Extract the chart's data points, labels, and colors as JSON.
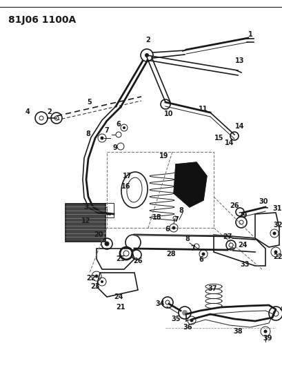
{
  "title": "81J06 1100A",
  "bg_color": "#ffffff",
  "line_color": "#1a1a1a",
  "title_fontsize": 10,
  "label_fontsize": 7,
  "fig_width": 4.1,
  "fig_height": 5.33,
  "dpi": 100
}
